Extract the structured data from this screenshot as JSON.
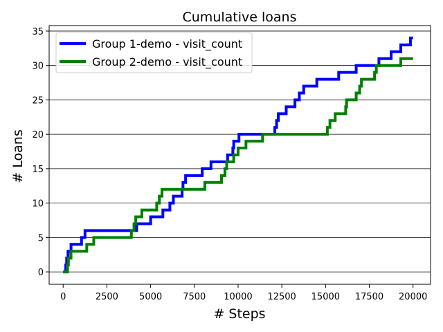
{
  "chart_data": {
    "type": "line",
    "title": "Cumulative loans",
    "xlabel": "# Steps",
    "ylabel": "# Loans",
    "xlim": [
      -800,
      21000
    ],
    "ylim": [
      -1.8,
      35.8
    ],
    "xticks": [
      0,
      2500,
      5000,
      7500,
      10000,
      12500,
      15000,
      17500,
      20000
    ],
    "yticks": [
      0,
      5,
      10,
      15,
      20,
      25,
      30,
      35
    ],
    "grid": "horizontal",
    "legend": "top-left",
    "series": [
      {
        "name": "Group 1-demo - visit_count",
        "color": "#0000ff",
        "points": [
          [
            0,
            0
          ],
          [
            150,
            0
          ],
          [
            150,
            1
          ],
          [
            200,
            1
          ],
          [
            200,
            2
          ],
          [
            280,
            2
          ],
          [
            280,
            3
          ],
          [
            450,
            3
          ],
          [
            450,
            4
          ],
          [
            1050,
            4
          ],
          [
            1050,
            5
          ],
          [
            1250,
            5
          ],
          [
            1250,
            6
          ],
          [
            4200,
            6
          ],
          [
            4200,
            7
          ],
          [
            5000,
            7
          ],
          [
            5000,
            8
          ],
          [
            5700,
            8
          ],
          [
            5700,
            9
          ],
          [
            6100,
            9
          ],
          [
            6100,
            10
          ],
          [
            6300,
            10
          ],
          [
            6300,
            11
          ],
          [
            6800,
            11
          ],
          [
            6800,
            12
          ],
          [
            6850,
            12
          ],
          [
            6850,
            13
          ],
          [
            7000,
            13
          ],
          [
            7000,
            14
          ],
          [
            7950,
            14
          ],
          [
            7950,
            15
          ],
          [
            8450,
            15
          ],
          [
            8450,
            16
          ],
          [
            9400,
            16
          ],
          [
            9400,
            17
          ],
          [
            9700,
            17
          ],
          [
            9700,
            18
          ],
          [
            9750,
            18
          ],
          [
            9750,
            19
          ],
          [
            10050,
            19
          ],
          [
            10050,
            20
          ],
          [
            12100,
            20
          ],
          [
            12100,
            21
          ],
          [
            12200,
            21
          ],
          [
            12200,
            22
          ],
          [
            12300,
            22
          ],
          [
            12300,
            23
          ],
          [
            12750,
            23
          ],
          [
            12750,
            24
          ],
          [
            13250,
            24
          ],
          [
            13250,
            25
          ],
          [
            13500,
            25
          ],
          [
            13500,
            26
          ],
          [
            13750,
            26
          ],
          [
            13750,
            27
          ],
          [
            14500,
            27
          ],
          [
            14500,
            28
          ],
          [
            15750,
            28
          ],
          [
            15750,
            29
          ],
          [
            16750,
            29
          ],
          [
            16750,
            30
          ],
          [
            18050,
            30
          ],
          [
            18050,
            31
          ],
          [
            18750,
            31
          ],
          [
            18750,
            32
          ],
          [
            19300,
            32
          ],
          [
            19300,
            33
          ],
          [
            19850,
            33
          ],
          [
            19850,
            34
          ],
          [
            20000,
            34
          ]
        ]
      },
      {
        "name": "Group 2-demo - visit_count",
        "color": "#008000",
        "points": [
          [
            0,
            0
          ],
          [
            250,
            0
          ],
          [
            250,
            1
          ],
          [
            300,
            1
          ],
          [
            300,
            2
          ],
          [
            450,
            2
          ],
          [
            450,
            3
          ],
          [
            1350,
            3
          ],
          [
            1350,
            4
          ],
          [
            1750,
            4
          ],
          [
            1750,
            5
          ],
          [
            3900,
            5
          ],
          [
            3900,
            6
          ],
          [
            4050,
            6
          ],
          [
            4050,
            7
          ],
          [
            4150,
            7
          ],
          [
            4150,
            8
          ],
          [
            4500,
            8
          ],
          [
            4500,
            9
          ],
          [
            5350,
            9
          ],
          [
            5350,
            10
          ],
          [
            5500,
            10
          ],
          [
            5500,
            11
          ],
          [
            5650,
            11
          ],
          [
            5650,
            12
          ],
          [
            8100,
            12
          ],
          [
            8100,
            13
          ],
          [
            9050,
            13
          ],
          [
            9050,
            14
          ],
          [
            9250,
            14
          ],
          [
            9250,
            15
          ],
          [
            9350,
            15
          ],
          [
            9350,
            16
          ],
          [
            9750,
            16
          ],
          [
            9750,
            17
          ],
          [
            10000,
            17
          ],
          [
            10000,
            18
          ],
          [
            10450,
            18
          ],
          [
            10450,
            19
          ],
          [
            11400,
            19
          ],
          [
            11400,
            20
          ],
          [
            15100,
            20
          ],
          [
            15100,
            21
          ],
          [
            15250,
            21
          ],
          [
            15250,
            22
          ],
          [
            15550,
            22
          ],
          [
            15550,
            23
          ],
          [
            16150,
            23
          ],
          [
            16150,
            24
          ],
          [
            16200,
            24
          ],
          [
            16200,
            25
          ],
          [
            16750,
            25
          ],
          [
            16750,
            26
          ],
          [
            16950,
            26
          ],
          [
            16950,
            27
          ],
          [
            17050,
            27
          ],
          [
            17050,
            28
          ],
          [
            17800,
            28
          ],
          [
            17800,
            29
          ],
          [
            17900,
            29
          ],
          [
            17900,
            30
          ],
          [
            19300,
            30
          ],
          [
            19300,
            31
          ],
          [
            20000,
            31
          ]
        ]
      }
    ]
  }
}
